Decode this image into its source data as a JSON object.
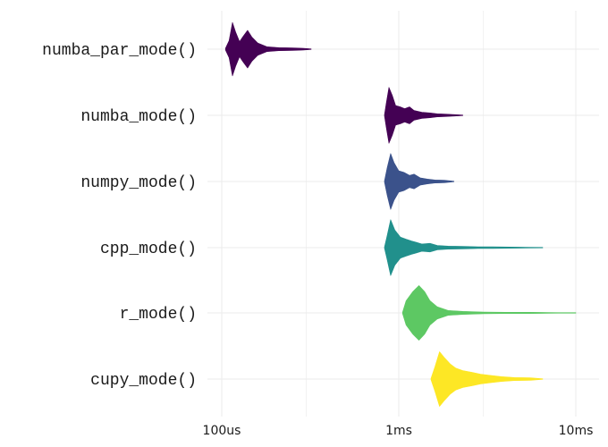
{
  "chart_data": {
    "type": "violin",
    "title": "",
    "xlabel": "",
    "ylabel": "",
    "x_scale": "log10",
    "x_unit": "seconds",
    "xlim": [
      8e-05,
      0.012
    ],
    "x_ticks": [
      {
        "value": 0.0001,
        "label": "100us"
      },
      {
        "value": 0.001,
        "label": "1ms"
      },
      {
        "value": 0.01,
        "label": "10ms"
      }
    ],
    "grid": true,
    "legend": "none",
    "series": [
      {
        "category": "numba_par_mode()",
        "color": "#440154",
        "min": 0.000105,
        "max": 0.00032,
        "density": [
          [
            0.000105,
            0.03
          ],
          [
            0.00011,
            0.28
          ],
          [
            0.000115,
            0.88
          ],
          [
            0.00012,
            0.55
          ],
          [
            0.000126,
            0.25
          ],
          [
            0.000132,
            0.42
          ],
          [
            0.00014,
            0.62
          ],
          [
            0.000148,
            0.4
          ],
          [
            0.00016,
            0.2
          ],
          [
            0.00018,
            0.08
          ],
          [
            0.00021,
            0.05
          ],
          [
            0.00025,
            0.04
          ],
          [
            0.00029,
            0.03
          ],
          [
            0.00032,
            0.01
          ]
        ]
      },
      {
        "category": "numba_mode()",
        "color": "#440154",
        "min": 0.00083,
        "max": 0.0023,
        "density": [
          [
            0.00083,
            0.02
          ],
          [
            0.00085,
            0.4
          ],
          [
            0.00088,
            0.92
          ],
          [
            0.00092,
            0.65
          ],
          [
            0.00096,
            0.32
          ],
          [
            0.00102,
            0.28
          ],
          [
            0.00108,
            0.22
          ],
          [
            0.00115,
            0.28
          ],
          [
            0.00122,
            0.16
          ],
          [
            0.00135,
            0.1
          ],
          [
            0.0015,
            0.08
          ],
          [
            0.00165,
            0.05
          ],
          [
            0.0018,
            0.04
          ],
          [
            0.002,
            0.03
          ],
          [
            0.0023,
            0.01
          ]
        ]
      },
      {
        "category": "numpy_mode()",
        "color": "#3b528b",
        "min": 0.00083,
        "max": 0.00205,
        "density": [
          [
            0.00083,
            0.02
          ],
          [
            0.00086,
            0.45
          ],
          [
            0.0009,
            0.92
          ],
          [
            0.00094,
            0.62
          ],
          [
            0.001,
            0.35
          ],
          [
            0.00107,
            0.3
          ],
          [
            0.00115,
            0.2
          ],
          [
            0.00122,
            0.24
          ],
          [
            0.00132,
            0.12
          ],
          [
            0.00145,
            0.08
          ],
          [
            0.0016,
            0.05
          ],
          [
            0.0018,
            0.04
          ],
          [
            0.00205,
            0.01
          ]
        ]
      },
      {
        "category": "cpp_mode()",
        "color": "#21908c",
        "min": 0.00083,
        "max": 0.0065,
        "density": [
          [
            0.00083,
            0.02
          ],
          [
            0.00086,
            0.4
          ],
          [
            0.0009,
            0.92
          ],
          [
            0.00095,
            0.58
          ],
          [
            0.00102,
            0.35
          ],
          [
            0.0011,
            0.28
          ],
          [
            0.00118,
            0.22
          ],
          [
            0.00125,
            0.18
          ],
          [
            0.00135,
            0.12
          ],
          [
            0.0015,
            0.14
          ],
          [
            0.00165,
            0.07
          ],
          [
            0.0019,
            0.05
          ],
          [
            0.0023,
            0.04
          ],
          [
            0.0028,
            0.03
          ],
          [
            0.0034,
            0.025
          ],
          [
            0.0042,
            0.02
          ],
          [
            0.0052,
            0.015
          ],
          [
            0.0065,
            0.01
          ]
        ]
      },
      {
        "category": "r_mode()",
        "color": "#5dc863",
        "min": 0.00105,
        "max": 0.01,
        "density": [
          [
            0.00105,
            0.02
          ],
          [
            0.0011,
            0.4
          ],
          [
            0.0012,
            0.7
          ],
          [
            0.0013,
            0.9
          ],
          [
            0.0014,
            0.7
          ],
          [
            0.0015,
            0.4
          ],
          [
            0.00165,
            0.2
          ],
          [
            0.0019,
            0.08
          ],
          [
            0.0023,
            0.05
          ],
          [
            0.003,
            0.03
          ],
          [
            0.004,
            0.02
          ],
          [
            0.0055,
            0.02
          ],
          [
            0.008,
            0.01
          ],
          [
            0.01,
            0.01
          ]
        ]
      },
      {
        "category": "cupy_mode()",
        "color": "#fde725",
        "min": 0.00152,
        "max": 0.0065,
        "density": [
          [
            0.00152,
            0.02
          ],
          [
            0.0016,
            0.4
          ],
          [
            0.0017,
            0.9
          ],
          [
            0.0018,
            0.72
          ],
          [
            0.00195,
            0.5
          ],
          [
            0.0021,
            0.36
          ],
          [
            0.0023,
            0.28
          ],
          [
            0.0026,
            0.22
          ],
          [
            0.0029,
            0.16
          ],
          [
            0.0033,
            0.12
          ],
          [
            0.0038,
            0.08
          ],
          [
            0.0045,
            0.05
          ],
          [
            0.0055,
            0.04
          ],
          [
            0.0065,
            0.01
          ]
        ]
      }
    ]
  }
}
